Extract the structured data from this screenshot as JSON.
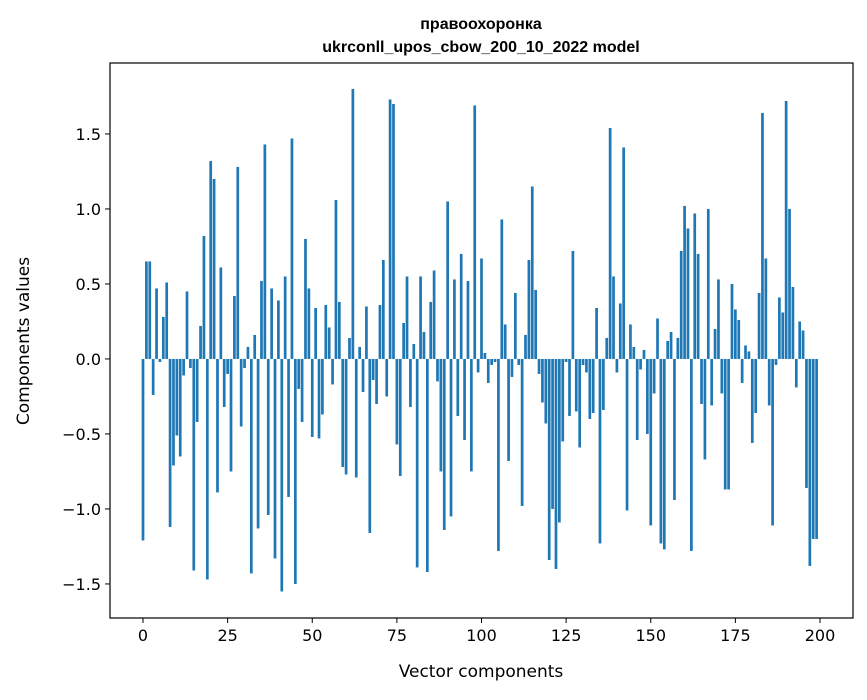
{
  "chart_data": {
    "type": "bar",
    "title": "правоохоронка",
    "subtitle": "ukrconll_upos_cbow_200_10_2022 model",
    "xlabel": "Vector components",
    "ylabel": "Components values",
    "xlim": [
      -9.75,
      209.75
    ],
    "ylim": [
      -1.727,
      1.973
    ],
    "xticks": [
      0,
      25,
      50,
      75,
      100,
      125,
      150,
      175,
      200
    ],
    "xtick_labels": [
      "0",
      "25",
      "50",
      "75",
      "100",
      "125",
      "150",
      "175",
      "200"
    ],
    "yticks": [
      -1.5,
      -1.0,
      -0.5,
      0.0,
      0.5,
      1.0,
      1.5
    ],
    "ytick_labels": [
      "−1.5",
      "−1.0",
      "−0.5",
      "0.0",
      "0.5",
      "1.0",
      "1.5"
    ],
    "grid": false,
    "color": "#1f77b4",
    "values": [
      -1.21,
      0.65,
      0.65,
      -0.24,
      0.47,
      -0.02,
      0.28,
      0.51,
      -1.12,
      -0.71,
      -0.51,
      -0.65,
      -0.11,
      0.45,
      -0.06,
      -1.41,
      -0.42,
      0.22,
      0.82,
      -1.47,
      1.32,
      1.2,
      -0.89,
      0.61,
      -0.32,
      -0.1,
      -0.75,
      0.42,
      1.28,
      -0.45,
      -0.06,
      0.08,
      -1.43,
      0.16,
      -1.13,
      0.52,
      1.43,
      -1.04,
      0.47,
      -1.33,
      0.39,
      -1.55,
      0.55,
      -0.92,
      1.47,
      -1.5,
      -0.2,
      -0.42,
      0.8,
      0.47,
      -0.52,
      0.34,
      -0.53,
      -0.37,
      0.36,
      0.21,
      -0.17,
      1.06,
      0.38,
      -0.72,
      -0.77,
      0.14,
      1.8,
      -0.79,
      0.08,
      -0.22,
      0.35,
      -1.16,
      -0.14,
      -0.3,
      0.36,
      0.66,
      -0.25,
      1.73,
      1.7,
      -0.57,
      -0.78,
      0.24,
      0.55,
      -0.32,
      0.1,
      -1.39,
      0.55,
      0.18,
      -1.42,
      0.38,
      0.59,
      -0.15,
      -0.75,
      -1.14,
      1.05,
      -1.05,
      0.53,
      -0.38,
      0.7,
      -0.54,
      0.52,
      -0.75,
      1.69,
      -0.09,
      0.67,
      0.04,
      -0.16,
      -0.04,
      -0.02,
      -1.28,
      0.93,
      0.23,
      -0.68,
      -0.12,
      0.44,
      -0.04,
      -0.98,
      0.16,
      0.66,
      1.15,
      0.46,
      -0.1,
      -0.29,
      -0.43,
      -1.34,
      -1.0,
      -1.4,
      -1.09,
      -0.55,
      -0.02,
      -0.38,
      0.72,
      -0.35,
      -0.59,
      -0.04,
      -0.09,
      -0.4,
      -0.36,
      0.34,
      -1.23,
      -0.34,
      0.14,
      1.54,
      0.55,
      -0.09,
      0.37,
      1.41,
      -1.01,
      0.23,
      0.08,
      -0.54,
      -0.07,
      0.06,
      -0.5,
      -1.11,
      -0.23,
      0.27,
      -1.23,
      -1.27,
      0.12,
      0.18,
      -0.94,
      0.14,
      0.72,
      1.02,
      0.87,
      -1.28,
      0.97,
      0.7,
      -0.3,
      -0.67,
      1.0,
      -0.31,
      0.2,
      0.53,
      -0.23,
      -0.87,
      -0.87,
      0.5,
      0.33,
      0.26,
      -0.16,
      0.09,
      0.05,
      -0.56,
      -0.36,
      0.44,
      1.64,
      0.67,
      -0.31,
      -1.11,
      -0.04,
      0.41,
      0.31,
      1.72,
      1.0,
      0.48,
      -0.19,
      0.25,
      0.19,
      -0.86,
      -1.38,
      -1.2,
      -1.2
    ]
  }
}
